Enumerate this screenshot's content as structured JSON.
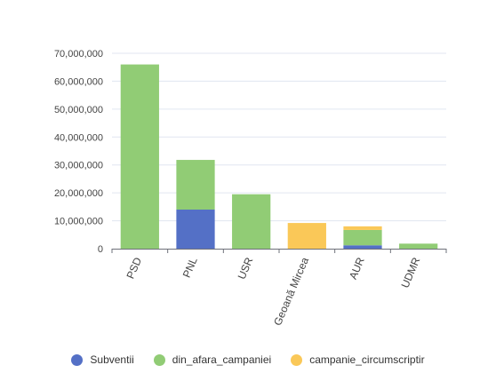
{
  "chart_data": {
    "type": "bar",
    "stacked": true,
    "categories": [
      "PSD",
      "PNL",
      "USR",
      "Geoană Mircea",
      "AUR",
      "UDMR"
    ],
    "series": [
      {
        "name": "Subventii",
        "color": "#5470c6",
        "values": [
          0,
          14000000,
          0,
          0,
          1200000,
          0
        ]
      },
      {
        "name": "din_afara_campaniei",
        "color": "#91cc75",
        "values": [
          66000000,
          17800000,
          19500000,
          0,
          5500000,
          1800000
        ]
      },
      {
        "name": "campanie_circumscriptir",
        "color": "#fac858",
        "values": [
          0,
          0,
          0,
          9200000,
          1300000,
          0
        ]
      }
    ],
    "ylim": [
      0,
      70000000
    ],
    "yticks": [
      "0",
      "10,000,000",
      "20,000,000",
      "30,000,000",
      "40,000,000",
      "50,000,000",
      "60,000,000",
      "70,000,000"
    ],
    "grid": true,
    "legend_position": "bottom"
  }
}
